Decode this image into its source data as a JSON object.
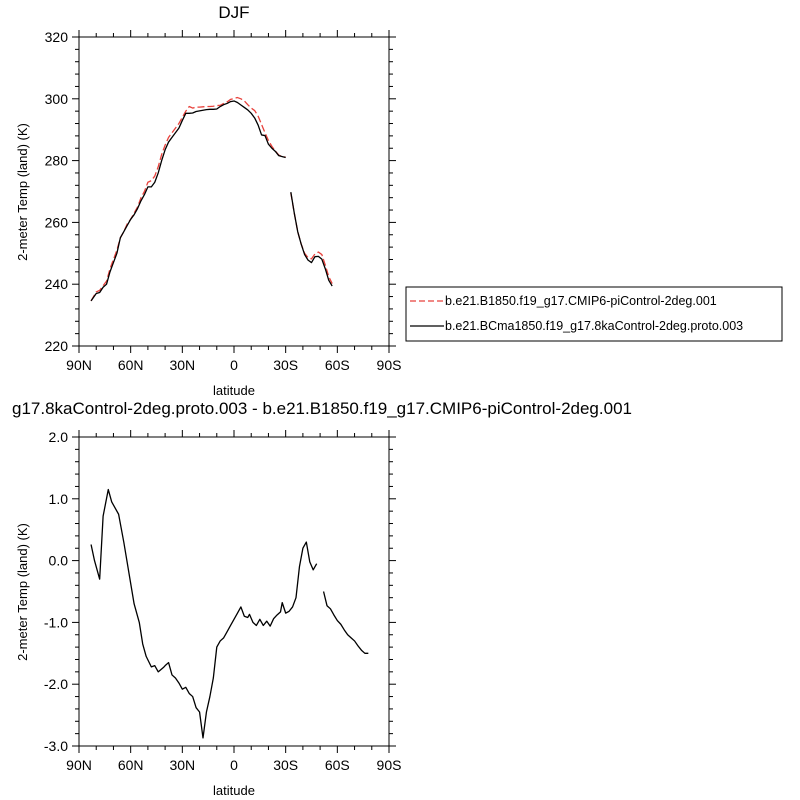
{
  "figure": {
    "panels_top_title": "DJF",
    "panels_bottom_title": "g17.8kaControl-2deg.proto.003 - b.e21.B1850.f19_g17.CMIP6-piControl-2deg.001"
  },
  "chart_data": [
    {
      "type": "line",
      "title": "DJF",
      "xlabel": "latitude",
      "ylabel": "2-meter Temp (land) (K)",
      "xlim": [
        90,
        -90
      ],
      "ylim": [
        220,
        320
      ],
      "x_ticks": [
        {
          "value": 90,
          "label": "90N"
        },
        {
          "value": 60,
          "label": "60N"
        },
        {
          "value": 30,
          "label": "30N"
        },
        {
          "value": 0,
          "label": "0"
        },
        {
          "value": -30,
          "label": "30S"
        },
        {
          "value": -60,
          "label": "60S"
        },
        {
          "value": -90,
          "label": "90S"
        }
      ],
      "y_ticks": [
        {
          "value": 220,
          "label": "220"
        },
        {
          "value": 240,
          "label": "240"
        },
        {
          "value": 260,
          "label": "260"
        },
        {
          "value": 280,
          "label": "280"
        },
        {
          "value": 300,
          "label": "300"
        },
        {
          "value": 320,
          "label": "320"
        }
      ],
      "legend_position": "right",
      "series": [
        {
          "name": "b.e21.B1850.f19_g17.CMIP6-piControl-2deg.001",
          "color": "#e8423c",
          "dash": "dashed",
          "segments": [
            [
              [
                83,
                234.6
              ],
              [
                80,
                237.5
              ],
              [
                78,
                238
              ],
              [
                76,
                239.5
              ],
              [
                74,
                241
              ],
              [
                72,
                245
              ],
              [
                70,
                248
              ],
              [
                68,
                251
              ],
              [
                66,
                255
              ],
              [
                64,
                257
              ],
              [
                62,
                259.5
              ],
              [
                60,
                261
              ],
              [
                58,
                263
              ],
              [
                56,
                265
              ],
              [
                54,
                268
              ],
              [
                52,
                270
              ],
              [
                50,
                273
              ],
              [
                48,
                273.5
              ],
              [
                46,
                275
              ],
              [
                44,
                278
              ],
              [
                42,
                282
              ],
              [
                40,
                285
              ],
              [
                38,
                287.5
              ],
              [
                36,
                289
              ],
              [
                34,
                290.5
              ],
              [
                32,
                292
              ],
              [
                30,
                294
              ],
              [
                28,
                296
              ],
              [
                26,
                297.5
              ],
              [
                24,
                297
              ],
              [
                22,
                297.3
              ],
              [
                20,
                297.3
              ],
              [
                18,
                297.4
              ],
              [
                16,
                297.5
              ],
              [
                14,
                297.5
              ],
              [
                12,
                297.6
              ],
              [
                10,
                297.8
              ],
              [
                8,
                297.9
              ],
              [
                6,
                298.5
              ],
              [
                4,
                299
              ],
              [
                2,
                299.8
              ],
              [
                0,
                300.1
              ],
              [
                -2,
                300.4
              ],
              [
                -4,
                300
              ],
              [
                -6,
                299.3
              ],
              [
                -8,
                298.1
              ],
              [
                -10,
                297
              ],
              [
                -12,
                296.2
              ],
              [
                -14,
                294.4
              ],
              [
                -16,
                291.7
              ],
              [
                -18,
                289
              ],
              [
                -20,
                286.5
              ],
              [
                -22,
                284.6
              ],
              [
                -24,
                283.1
              ],
              [
                -26,
                281.8
              ],
              [
                -28,
                281.3
              ],
              [
                -30,
                281.1
              ]
            ],
            [
              [
                -33,
                269.5
              ],
              [
                -35,
                263
              ],
              [
                -37,
                257
              ],
              [
                -39,
                253
              ],
              [
                -41,
                250
              ],
              [
                -43,
                248.6
              ],
              [
                -45,
                248.2
              ],
              [
                -47,
                249.8
              ],
              [
                -49,
                250.4
              ],
              [
                -51,
                249.6
              ],
              [
                -53,
                246.2
              ],
              [
                -55,
                242.5
              ],
              [
                -57,
                240.2
              ]
            ]
          ]
        },
        {
          "name": "b.e21.BCma1850.f19_g17.8kaControl-2deg.proto.003",
          "color": "#000000",
          "dash": "solid",
          "segments": [
            [
              [
                83,
                234.6
              ],
              [
                80,
                237
              ],
              [
                78,
                237.3
              ],
              [
                76,
                239
              ],
              [
                74,
                240
              ],
              [
                72,
                244
              ],
              [
                70,
                247
              ],
              [
                68,
                250
              ],
              [
                66,
                255
              ],
              [
                64,
                257
              ],
              [
                62,
                259
              ],
              [
                60,
                261
              ],
              [
                58,
                262.5
              ],
              [
                56,
                264.5
              ],
              [
                54,
                267
              ],
              [
                52,
                269
              ],
              [
                50,
                271.5
              ],
              [
                48,
                271.5
              ],
              [
                46,
                273
              ],
              [
                44,
                276
              ],
              [
                42,
                280
              ],
              [
                40,
                283.5
              ],
              [
                38,
                286
              ],
              [
                36,
                287.5
              ],
              [
                34,
                289
              ],
              [
                32,
                290.5
              ],
              [
                30,
                293
              ],
              [
                28,
                295.3
              ],
              [
                26,
                295.3
              ],
              [
                24,
                295.4
              ],
              [
                22,
                295.9
              ],
              [
                20,
                296.1
              ],
              [
                18,
                296.3
              ],
              [
                16,
                296.5
              ],
              [
                14,
                296.6
              ],
              [
                12,
                296.6
              ],
              [
                10,
                296.7
              ],
              [
                8,
                297.5
              ],
              [
                6,
                298.1
              ],
              [
                4,
                298.5
              ],
              [
                2,
                299.1
              ],
              [
                0,
                299.3
              ],
              [
                -2,
                298.8
              ],
              [
                -4,
                298
              ],
              [
                -6,
                297.2
              ],
              [
                -8,
                296.4
              ],
              [
                -10,
                295.3
              ],
              [
                -12,
                293.8
              ],
              [
                -14,
                291.5
              ],
              [
                -16,
                288.3
              ],
              [
                -18,
                288.1
              ],
              [
                -20,
                285.3
              ],
              [
                -22,
                284
              ],
              [
                -24,
                283
              ],
              [
                -26,
                281.6
              ],
              [
                -28,
                281.3
              ],
              [
                -30,
                281
              ]
            ],
            [
              [
                -33,
                269.8
              ],
              [
                -35,
                263
              ],
              [
                -37,
                257
              ],
              [
                -39,
                253
              ],
              [
                -41,
                249.6
              ],
              [
                -43,
                247.8
              ],
              [
                -45,
                247
              ],
              [
                -47,
                248.9
              ],
              [
                -49,
                249
              ],
              [
                -51,
                248.1
              ],
              [
                -53,
                245
              ],
              [
                -55,
                241.3
              ],
              [
                -57,
                239.4
              ]
            ]
          ]
        }
      ]
    },
    {
      "type": "line",
      "title": "g17.8kaControl-2deg.proto.003 - b.e21.B1850.f19_g17.CMIP6-piControl-2deg.001",
      "xlabel": "latitude",
      "ylabel": "2-meter Temp (land) (K)",
      "xlim": [
        90,
        -90
      ],
      "ylim": [
        -3.0,
        2.0
      ],
      "x_ticks": [
        {
          "value": 90,
          "label": "90N"
        },
        {
          "value": 60,
          "label": "60N"
        },
        {
          "value": 30,
          "label": "30N"
        },
        {
          "value": 0,
          "label": "0"
        },
        {
          "value": -30,
          "label": "30S"
        },
        {
          "value": -60,
          "label": "60S"
        },
        {
          "value": -90,
          "label": "90S"
        }
      ],
      "y_ticks": [
        {
          "value": -3.0,
          "label": "-3.0"
        },
        {
          "value": -2.0,
          "label": "-2.0"
        },
        {
          "value": -1.0,
          "label": "-1.0"
        },
        {
          "value": 0.0,
          "label": "0.0"
        },
        {
          "value": 1.0,
          "label": "1.0"
        },
        {
          "value": 2.0,
          "label": "2.0"
        }
      ],
      "series": [
        {
          "color": "#000000",
          "dash": "solid",
          "segments": [
            [
              [
                83,
                0.26
              ],
              [
                81,
                0.0
              ],
              [
                78,
                -0.3
              ],
              [
                76,
                0.72
              ],
              [
                73,
                1.15
              ],
              [
                71,
                0.95
              ],
              [
                67,
                0.75
              ],
              [
                64,
                0.3
              ],
              [
                61,
                -0.2
              ],
              [
                58,
                -0.7
              ],
              [
                55,
                -1.0
              ],
              [
                53,
                -1.35
              ],
              [
                51,
                -1.55
              ],
              [
                48,
                -1.72
              ],
              [
                46,
                -1.7
              ],
              [
                44,
                -1.8
              ],
              [
                41,
                -1.73
              ],
              [
                40,
                -1.7
              ],
              [
                38,
                -1.65
              ],
              [
                36,
                -1.85
              ],
              [
                34,
                -1.9
              ],
              [
                32,
                -1.98
              ],
              [
                30,
                -2.08
              ],
              [
                28,
                -2.05
              ],
              [
                26,
                -2.15
              ],
              [
                24,
                -2.2
              ],
              [
                22,
                -2.38
              ],
              [
                20,
                -2.45
              ],
              [
                18,
                -2.87
              ],
              [
                16,
                -2.45
              ],
              [
                14,
                -2.2
              ],
              [
                12,
                -1.9
              ],
              [
                10,
                -1.4
              ],
              [
                8,
                -1.3
              ],
              [
                6,
                -1.25
              ],
              [
                4,
                -1.15
              ],
              [
                2,
                -1.05
              ],
              [
                0,
                -0.95
              ],
              [
                -2,
                -0.85
              ],
              [
                -4,
                -0.75
              ],
              [
                -6,
                -0.9
              ],
              [
                -8,
                -0.92
              ],
              [
                -9,
                -0.87
              ],
              [
                -11,
                -1.0
              ],
              [
                -13,
                -1.05
              ],
              [
                -15,
                -0.95
              ],
              [
                -17,
                -1.05
              ],
              [
                -19,
                -0.98
              ],
              [
                -21,
                -1.06
              ],
              [
                -23,
                -0.94
              ],
              [
                -25,
                -0.88
              ],
              [
                -27,
                -0.83
              ],
              [
                -28,
                -0.68
              ],
              [
                -30,
                -0.85
              ],
              [
                -32,
                -0.82
              ],
              [
                -34,
                -0.75
              ],
              [
                -36,
                -0.6
              ],
              [
                -38,
                -0.1
              ],
              [
                -40,
                0.2
              ],
              [
                -42,
                0.3
              ],
              [
                -44,
                -0.02
              ],
              [
                -46,
                -0.15
              ],
              [
                -48,
                -0.05
              ]
            ],
            [
              [
                -52,
                -0.5
              ],
              [
                -54,
                -0.73
              ],
              [
                -56,
                -0.78
              ],
              [
                -58,
                -0.88
              ],
              [
                -60,
                -0.97
              ],
              [
                -62,
                -1.03
              ],
              [
                -64,
                -1.12
              ],
              [
                -66,
                -1.2
              ],
              [
                -68,
                -1.25
              ],
              [
                -70,
                -1.3
              ],
              [
                -72,
                -1.38
              ],
              [
                -74,
                -1.45
              ],
              [
                -76,
                -1.5
              ],
              [
                -78,
                -1.5
              ]
            ]
          ]
        }
      ]
    }
  ]
}
